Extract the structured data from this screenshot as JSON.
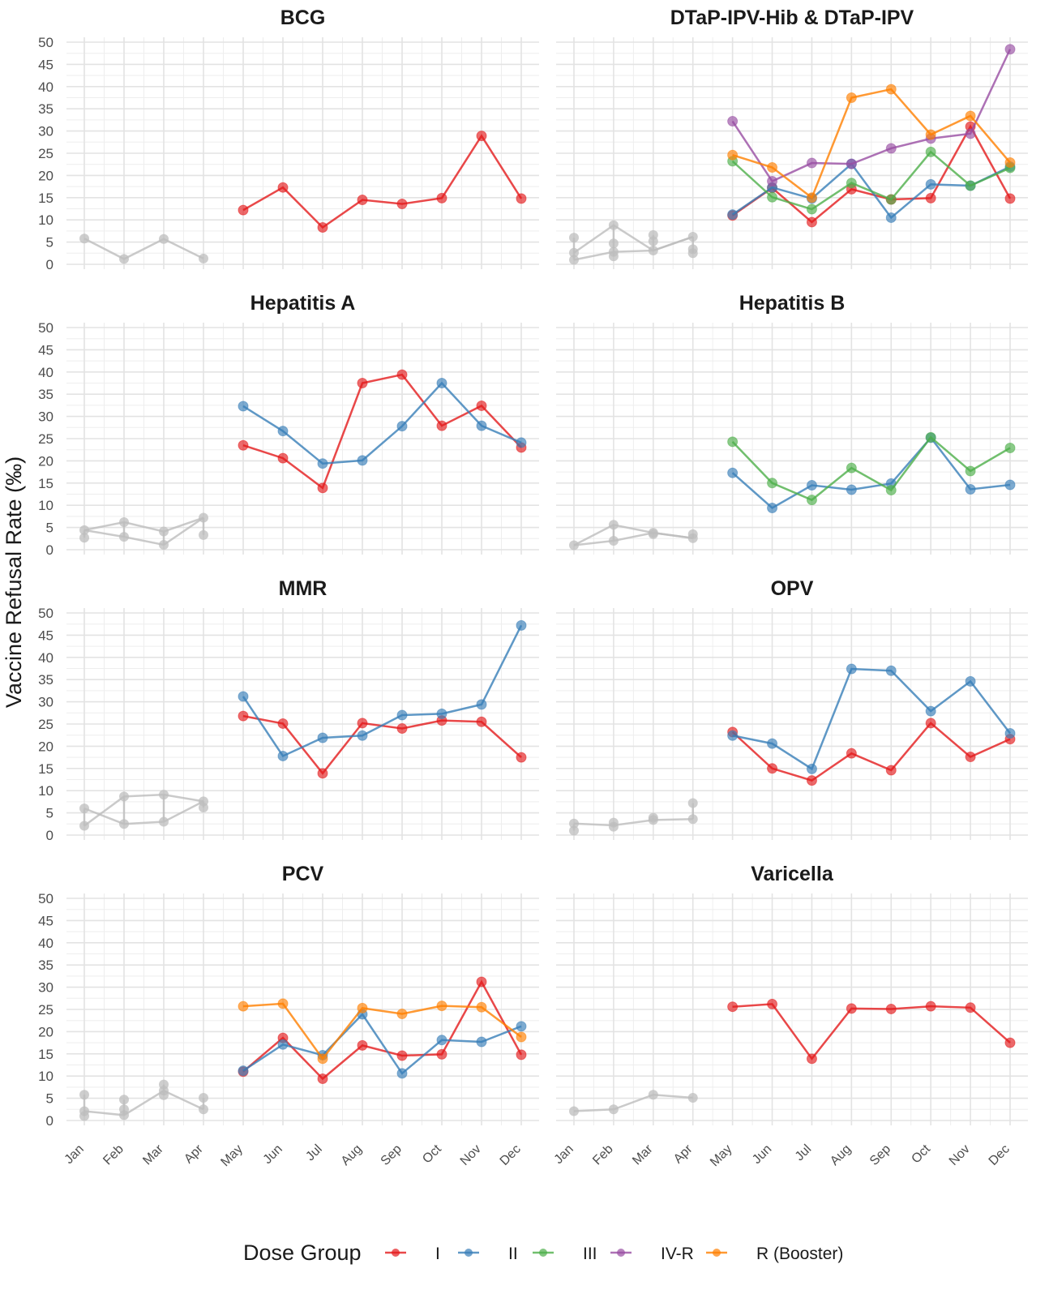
{
  "chart_data": {
    "type": "line",
    "ylabel": "Vaccine Refusal Rate (‰)",
    "xlabel": "",
    "ylim": [
      0,
      50
    ],
    "yticks": [
      0,
      5,
      10,
      15,
      20,
      25,
      30,
      35,
      40,
      45,
      50
    ],
    "months": [
      "Jan",
      "Feb",
      "Mar",
      "Apr",
      "May",
      "Jun",
      "Jul",
      "Aug",
      "Sep",
      "Oct",
      "Nov",
      "Dec"
    ],
    "grid": true,
    "legend": {
      "title": "Dose Group",
      "placement": "bottom",
      "entries": [
        {
          "name": "I",
          "color": "#E41A1C"
        },
        {
          "name": "II",
          "color": "#377EB8"
        },
        {
          "name": "III",
          "color": "#4DAF4A"
        },
        {
          "name": "IV-R",
          "color": "#984EA3"
        },
        {
          "name": "R (Booster)",
          "color": "#FF7F00"
        }
      ]
    },
    "grey_color": "#BDBDBD",
    "panels": [
      {
        "title": "BCG",
        "early": [
          [
            5.8
          ],
          [
            1.2
          ],
          [
            5.7
          ],
          [
            1.3
          ]
        ],
        "early_line": [
          5.8,
          1.2,
          5.7,
          1.3
        ],
        "series": [
          {
            "name": "I",
            "values": [
              12.2,
              17.3,
              8.3,
              14.5,
              13.6,
              14.9,
              28.9,
              14.8
            ]
          }
        ]
      },
      {
        "title": "DTaP-IPV-Hib & DTaP-IPV",
        "early": [
          [
            6.0,
            2.6,
            1.0
          ],
          [
            8.8,
            4.7,
            2.8,
            1.8
          ],
          [
            6.6,
            5.2,
            3.1
          ],
          [
            6.2,
            3.4,
            2.5
          ]
        ],
        "early_line": [
          2.6,
          8.8,
          3.1,
          6.2
        ],
        "early_line2": [
          1.0,
          2.8,
          3.1,
          6.2
        ],
        "series": [
          {
            "name": "I",
            "values": [
              11.0,
              17.2,
              9.5,
              16.9,
              14.6,
              14.9,
              31.0,
              14.8
            ]
          },
          {
            "name": "II",
            "values": [
              11.2,
              17.3,
              14.8,
              22.6,
              10.5,
              18.0,
              17.7,
              22.0
            ]
          },
          {
            "name": "III",
            "values": [
              23.2,
              15.1,
              12.4,
              18.3,
              14.6,
              25.3,
              17.7,
              21.7
            ]
          },
          {
            "name": "IV-R",
            "values": [
              32.2,
              18.7,
              22.8,
              22.6,
              26.1,
              28.3,
              29.4,
              48.4
            ]
          },
          {
            "name": "R (Booster)",
            "values": [
              24.6,
              21.8,
              15.0,
              37.5,
              39.4,
              29.2,
              33.4,
              22.9
            ]
          }
        ]
      },
      {
        "title": "Hepatitis A",
        "early": [
          [
            4.4,
            2.7
          ],
          [
            6.2,
            2.9
          ],
          [
            4.1,
            1.1
          ],
          [
            7.2,
            3.3
          ]
        ],
        "early_line": [
          4.4,
          2.9,
          1.1,
          7.2
        ],
        "early_line2": [
          4.4,
          6.2,
          4.1,
          7.2
        ],
        "series": [
          {
            "name": "I",
            "values": [
              23.5,
              20.6,
              13.9,
              37.5,
              39.4,
              27.9,
              32.4,
              23.0
            ]
          },
          {
            "name": "II",
            "values": [
              32.3,
              26.7,
              19.4,
              20.1,
              27.8,
              37.5,
              27.9,
              24.1
            ]
          }
        ]
      },
      {
        "title": "Hepatitis B",
        "early": [
          [
            1.0
          ],
          [
            5.6,
            2.0
          ],
          [
            3.8,
            3.5
          ],
          [
            3.5,
            2.6
          ]
        ],
        "early_line": [
          1.0,
          5.6,
          3.8,
          2.6
        ],
        "early_line2": [
          1.0,
          2.0,
          3.8,
          2.6
        ],
        "series": [
          {
            "name": "II",
            "values": [
              17.3,
              9.4,
              14.5,
              13.5,
              14.9,
              25.2,
              13.6,
              14.6
            ]
          },
          {
            "name": "III",
            "values": [
              24.3,
              15.0,
              11.2,
              18.4,
              13.4,
              25.3,
              17.7,
              22.9
            ]
          }
        ]
      },
      {
        "title": "MMR",
        "early": [
          [
            6.0,
            2.1
          ],
          [
            8.7,
            2.5
          ],
          [
            9.1,
            3.0
          ],
          [
            7.6,
            6.2
          ]
        ],
        "early_line": [
          6.0,
          2.5,
          3.0,
          7.6
        ],
        "early_line2": [
          2.1,
          8.7,
          9.1,
          7.6
        ],
        "series": [
          {
            "name": "I",
            "values": [
              26.8,
              25.1,
              13.9,
              25.2,
              24.0,
              25.8,
              25.5,
              17.5
            ]
          },
          {
            "name": "II",
            "values": [
              31.2,
              17.8,
              21.9,
              22.4,
              27.0,
              27.3,
              29.4,
              47.2
            ]
          }
        ]
      },
      {
        "title": "OPV",
        "early": [
          [
            2.6,
            1.0
          ],
          [
            2.8,
            1.9
          ],
          [
            3.4,
            3.9
          ],
          [
            3.6,
            7.2
          ]
        ],
        "early_line": [
          2.6,
          2.2,
          3.4,
          3.6
        ],
        "series": [
          {
            "name": "I",
            "values": [
              23.2,
              15.0,
              12.3,
              18.4,
              14.6,
              25.2,
              17.6,
              21.6
            ]
          },
          {
            "name": "II",
            "values": [
              22.4,
              20.6,
              14.9,
              37.4,
              37.0,
              27.9,
              34.6,
              22.9
            ]
          }
        ]
      },
      {
        "title": "PCV",
        "early": [
          [
            5.8,
            2.1,
            1.0
          ],
          [
            4.7,
            2.5,
            1.2
          ],
          [
            8.1,
            6.7,
            5.7
          ],
          [
            5.1,
            2.5
          ]
        ],
        "early_line": [
          2.1,
          1.2,
          6.7,
          2.5
        ],
        "series": [
          {
            "name": "I",
            "values": [
              11.0,
              18.6,
              9.4,
              16.9,
              14.6,
              14.9,
              31.2,
              14.8
            ]
          },
          {
            "name": "II",
            "values": [
              11.2,
              17.1,
              14.7,
              23.9,
              10.6,
              18.1,
              17.7,
              21.2
            ]
          },
          {
            "name": "R (Booster)",
            "values": [
              25.7,
              26.3,
              13.9,
              25.3,
              24.0,
              25.8,
              25.5,
              18.8
            ]
          }
        ]
      },
      {
        "title": "Varicella",
        "early": [
          [
            2.1
          ],
          [
            2.5
          ],
          [
            5.8
          ],
          [
            5.1
          ]
        ],
        "early_line": [
          2.1,
          2.5,
          5.8,
          5.1
        ],
        "series": [
          {
            "name": "I",
            "values": [
              25.6,
              26.2,
              13.9,
              25.2,
              25.1,
              25.7,
              25.4,
              17.5
            ]
          }
        ]
      }
    ]
  }
}
